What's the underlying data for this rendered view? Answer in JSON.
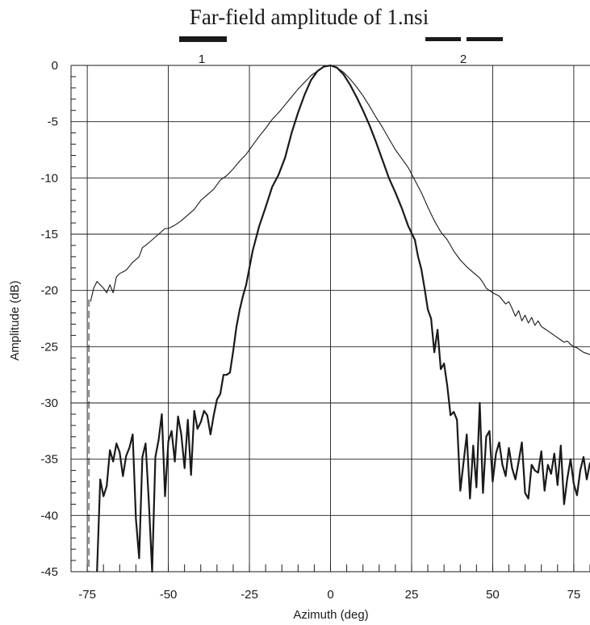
{
  "chart_data": {
    "type": "line",
    "title": "Far-field amplitude of 1.nsi",
    "xlabel": "Azimuth (deg)",
    "ylabel": "Amplitude (dB)",
    "xlim": [
      -80,
      80
    ],
    "ylim": [
      -45,
      0
    ],
    "xticks": [
      -75,
      -50,
      -25,
      0,
      25,
      50,
      75
    ],
    "yticks": [
      0,
      -5,
      -10,
      -15,
      -20,
      -25,
      -30,
      -35,
      -40,
      -45
    ],
    "grid": true,
    "legend": [
      {
        "label": "1",
        "style": "thick-bar",
        "position": "top-left"
      },
      {
        "label": "2",
        "style": "dashed-bar",
        "position": "top-right"
      }
    ],
    "series": [
      {
        "style": "thin",
        "x": [
          -74,
          -73,
          -72,
          -71,
          -70,
          -69,
          -68,
          -67,
          -66,
          -65,
          -63,
          -61,
          -59,
          -58,
          -57,
          -55,
          -53,
          -51,
          -50,
          -48,
          -46,
          -44,
          -42,
          -40,
          -38,
          -36,
          -34,
          -32,
          -30,
          -28,
          -26,
          -24,
          -22,
          -20,
          -18,
          -16,
          -14,
          -12,
          -10,
          -8,
          -6,
          -4,
          -2,
          0,
          2,
          4,
          6,
          8,
          10,
          12,
          14,
          16,
          18,
          20,
          22,
          24,
          26,
          28,
          30,
          32,
          34,
          36,
          38,
          40,
          42,
          44,
          46,
          47,
          48,
          49,
          50,
          52,
          54,
          55,
          56,
          57,
          58,
          59,
          60,
          61,
          62,
          63,
          64,
          65,
          66,
          67,
          68,
          69,
          70,
          71,
          72,
          73,
          74,
          75,
          76,
          77,
          78,
          79,
          80
        ],
        "values": [
          -21,
          -19.8,
          -19.2,
          -19.5,
          -19.8,
          -20.2,
          -19.5,
          -20.2,
          -18.8,
          -18.5,
          -18.2,
          -17.5,
          -17,
          -16.2,
          -16,
          -15.5,
          -15,
          -14.5,
          -14.5,
          -14.2,
          -13.8,
          -13.3,
          -12.8,
          -12,
          -11.5,
          -11,
          -10.2,
          -9.8,
          -9.2,
          -8.5,
          -7.9,
          -7.1,
          -6.3,
          -5.6,
          -4.8,
          -4.2,
          -3.5,
          -2.8,
          -2.1,
          -1.5,
          -0.9,
          -0.5,
          -0.1,
          0,
          -0.2,
          -0.6,
          -1.2,
          -1.9,
          -2.7,
          -3.6,
          -4.6,
          -5.5,
          -6.5,
          -7.5,
          -8.3,
          -9.1,
          -10.2,
          -11.3,
          -12.6,
          -13.8,
          -14.8,
          -15.5,
          -16.5,
          -17.3,
          -17.9,
          -18.4,
          -18.9,
          -19.3,
          -19.8,
          -20,
          -20.2,
          -20.5,
          -21.2,
          -21,
          -21.6,
          -22.3,
          -21.8,
          -22.7,
          -22.2,
          -22.9,
          -22.4,
          -23.1,
          -22.7,
          -23.2,
          -23.4,
          -23.6,
          -23.8,
          -24,
          -24.2,
          -24.4,
          -24.6,
          -24.5,
          -24.8,
          -25,
          -25.1,
          -25.3,
          -25.5,
          -25.6,
          -25.7
        ]
      },
      {
        "style": "thick",
        "x": [
          -72,
          -71,
          -70,
          -69,
          -68,
          -67,
          -66,
          -65,
          -64,
          -63,
          -62,
          -61,
          -60,
          -59,
          -58,
          -57,
          -56,
          -55,
          -54,
          -53,
          -52,
          -51,
          -50,
          -49,
          -48,
          -47,
          -46,
          -45,
          -44,
          -43,
          -42,
          -41,
          -40,
          -39,
          -38,
          -37,
          -36,
          -35,
          -34,
          -33,
          -32,
          -31,
          -30,
          -29,
          -28,
          -27,
          -26,
          -24,
          -22,
          -20,
          -18,
          -16,
          -14,
          -12,
          -10,
          -8,
          -6,
          -4,
          -2,
          0,
          2,
          4,
          6,
          8,
          10,
          12,
          14,
          16,
          18,
          20,
          22,
          24,
          26,
          27,
          28,
          29,
          30,
          31,
          32,
          33,
          34,
          35,
          36,
          37,
          38,
          39,
          40,
          41,
          42,
          43,
          44,
          45,
          46,
          47,
          48,
          49,
          50,
          51,
          52,
          53,
          54,
          55,
          56,
          57,
          58,
          59,
          60,
          61,
          62,
          63,
          64,
          65,
          66,
          67,
          68,
          69,
          70,
          71,
          72,
          73,
          74,
          75,
          76,
          77,
          78,
          79,
          80
        ],
        "values": [
          -45,
          -36.8,
          -38.3,
          -37.4,
          -34.2,
          -35.2,
          -33.6,
          -34.4,
          -36.5,
          -34.7,
          -34.0,
          -32.8,
          -40.3,
          -43.8,
          -34.8,
          -33.6,
          -38.8,
          -45.0,
          -34.8,
          -33.3,
          -31.0,
          -38.3,
          -33.4,
          -32.5,
          -35.2,
          -31.2,
          -32.8,
          -35.8,
          -31.5,
          -36.4,
          -30.7,
          -32.3,
          -31.7,
          -30.7,
          -31.1,
          -32.8,
          -31.1,
          -29.7,
          -29.2,
          -27.5,
          -27.5,
          -27.3,
          -25.4,
          -23.2,
          -21.7,
          -20.5,
          -19.5,
          -16.5,
          -14.3,
          -12.6,
          -10.8,
          -9.7,
          -8.2,
          -6.0,
          -4.2,
          -2.6,
          -1.3,
          -0.5,
          -0.1,
          0,
          -0.2,
          -0.8,
          -1.7,
          -2.8,
          -4.0,
          -5.3,
          -6.8,
          -8.4,
          -10.0,
          -11.3,
          -12.7,
          -14.3,
          -15.5,
          -17.0,
          -18.1,
          -19.8,
          -21.7,
          -22.5,
          -25.5,
          -23.5,
          -27.0,
          -26.5,
          -28.5,
          -31.1,
          -30.8,
          -31.5,
          -37.8,
          -35.3,
          -32.8,
          -38.5,
          -33.8,
          -37.5,
          -30.0,
          -38.0,
          -33.0,
          -32.5,
          -37.0,
          -34.5,
          -33.5,
          -35.5,
          -36.5,
          -34.0,
          -35.8,
          -36.8,
          -35.2,
          -33.5,
          -38.0,
          -38.5,
          -35.5,
          -36.0,
          -36.2,
          -34.3,
          -37.8,
          -35.5,
          -36.3,
          -34.5,
          -37.3,
          -33.8,
          -39.0,
          -36.7,
          -35.0,
          -37.2,
          -38.2,
          -36.0,
          -34.8,
          -36.8,
          -35.3
        ]
      }
    ]
  }
}
